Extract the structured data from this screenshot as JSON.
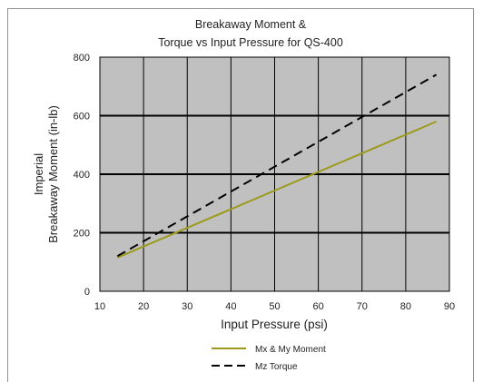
{
  "chart_data": {
    "type": "line",
    "title_lines": [
      "Breakaway Moment &",
      "Torque vs Input Pressure for QS-400"
    ],
    "xlabel": "Input Pressure (psi)",
    "ylabel_lines": [
      "Imperial",
      "Breakaway Moment (in-lb)"
    ],
    "xlim": [
      10,
      90
    ],
    "ylim": [
      0,
      800
    ],
    "x_ticks": [
      "10",
      "20",
      "30",
      "40",
      "50",
      "60",
      "70",
      "80",
      "90"
    ],
    "y_ticks": [
      "0",
      "200",
      "400",
      "600",
      "800"
    ],
    "grid": true,
    "plot_background": "#c0c0c0",
    "legend_position": "bottom",
    "series": [
      {
        "name": "Mx & My Moment",
        "color": "#9c9a1c",
        "style": "solid",
        "points": [
          [
            14,
            115
          ],
          [
            87,
            580
          ]
        ]
      },
      {
        "name": "Mz Torque",
        "color": "#000000",
        "style": "dashed",
        "points": [
          [
            14,
            120
          ],
          [
            87,
            740
          ]
        ]
      }
    ]
  }
}
